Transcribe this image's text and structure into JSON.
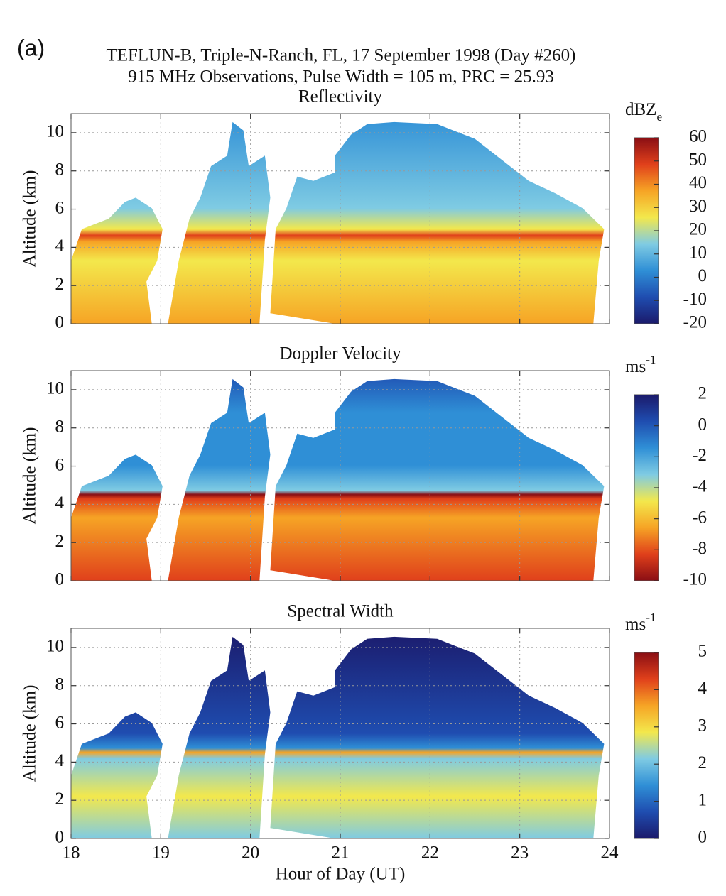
{
  "header": {
    "label": "(a)",
    "lines": [
      "TEFLUN-B, Triple-N-Ranch, FL, 17 September 1998 (Day #260)",
      "915 MHz Observations, Pulse Width = 105 m, PRC = 25.93"
    ]
  },
  "chart_data": [
    {
      "type": "heatmap",
      "title": "Reflectivity",
      "ylabel": "Altitude (km)",
      "xlim": [
        18,
        24
      ],
      "xticks": [
        18,
        19,
        20,
        21,
        22,
        23,
        24
      ],
      "show_xticklabels": false,
      "ylim": [
        0,
        11
      ],
      "yticks": [
        0,
        2,
        4,
        6,
        8,
        10
      ],
      "grid": true,
      "colorbar": {
        "label": "dBZ",
        "label_sub": "e",
        "clim": [
          -20,
          60
        ],
        "ticks": [
          -20,
          -10,
          0,
          10,
          20,
          30,
          40,
          50,
          60
        ],
        "colors": [
          "#1b1a6b",
          "#1f4db0",
          "#2f8fd6",
          "#7fcbe3",
          "#f3e84c",
          "#f6a425",
          "#e0401b",
          "#8a0e14"
        ]
      }
    },
    {
      "type": "heatmap",
      "title": "Doppler Velocity",
      "ylabel": "Altitude (km)",
      "xlim": [
        18,
        24
      ],
      "xticks": [
        18,
        19,
        20,
        21,
        22,
        23,
        24
      ],
      "show_xticklabels": false,
      "ylim": [
        0,
        11
      ],
      "yticks": [
        0,
        2,
        4,
        6,
        8,
        10
      ],
      "grid": true,
      "colorbar": {
        "label": "ms",
        "label_sup": "-1",
        "clim": [
          -10,
          2
        ],
        "ticks": [
          -10,
          -8,
          -6,
          -4,
          -2,
          0,
          2
        ],
        "colors": [
          "#8a0e14",
          "#e0401b",
          "#f6a425",
          "#f3e84c",
          "#7fcbe3",
          "#2f8fd6",
          "#1f4db0",
          "#1b1a6b"
        ]
      }
    },
    {
      "type": "heatmap",
      "title": "Spectral Width",
      "ylabel": "Altitude (km)",
      "xlabel": "Hour of Day (UT)",
      "xlim": [
        18,
        24
      ],
      "xticks": [
        18,
        19,
        20,
        21,
        22,
        23,
        24
      ],
      "show_xticklabels": true,
      "ylim": [
        0,
        11
      ],
      "yticks": [
        0,
        2,
        4,
        6,
        8,
        10
      ],
      "grid": true,
      "colorbar": {
        "label": "ms",
        "label_sup": "-1",
        "clim": [
          0,
          5
        ],
        "ticks": [
          0,
          1,
          2,
          3,
          4,
          5
        ],
        "colors": [
          "#1b1a6b",
          "#1f4db0",
          "#2f8fd6",
          "#7fcbe3",
          "#f3e84c",
          "#f6a425",
          "#e0401b",
          "#8a0e14"
        ]
      }
    }
  ]
}
